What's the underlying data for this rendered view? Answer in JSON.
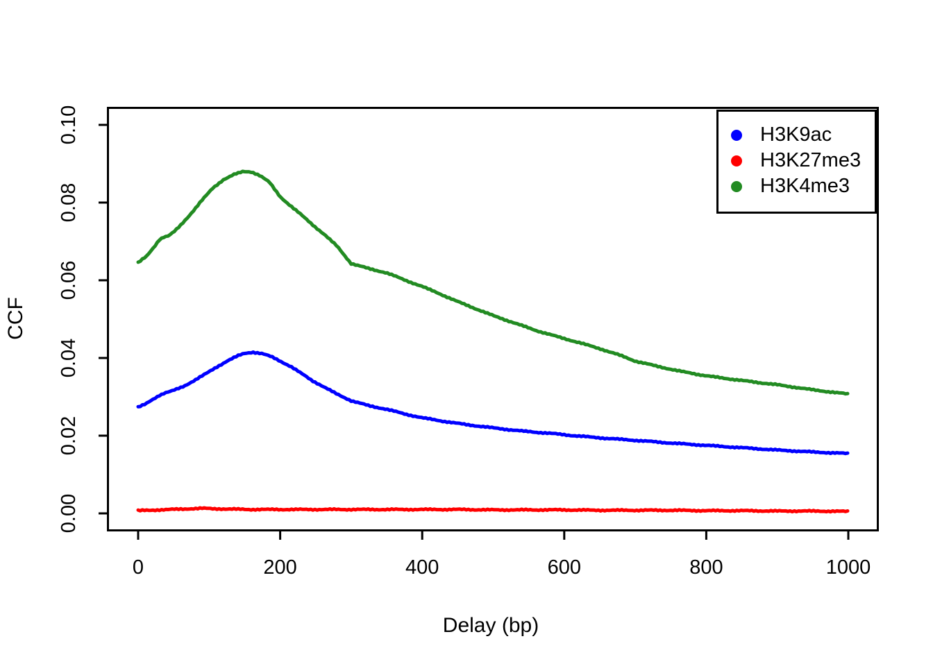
{
  "chart_data": {
    "type": "line",
    "title": "",
    "xlabel": "Delay (bp)",
    "ylabel": "CCF",
    "xlim": [
      0,
      1000
    ],
    "ylim": [
      0,
      0.1
    ],
    "grid": false,
    "legend_position": "topright",
    "x_ticks": [
      0,
      200,
      400,
      600,
      800,
      1000
    ],
    "x_tick_labels": [
      "0",
      "200",
      "400",
      "600",
      "800",
      "1000"
    ],
    "y_ticks": [
      0.0,
      0.02,
      0.04,
      0.06,
      0.08,
      0.1
    ],
    "y_tick_labels": [
      "0.00",
      "0.02",
      "0.04",
      "0.06",
      "0.08",
      "0.10"
    ],
    "series": [
      {
        "name": "H3K9ac",
        "color": "#0000FF",
        "points": [
          [
            0,
            0.0273
          ],
          [
            10,
            0.0281
          ],
          [
            20,
            0.0293
          ],
          [
            30,
            0.0304
          ],
          [
            38,
            0.031
          ],
          [
            46,
            0.0314
          ],
          [
            55,
            0.032
          ],
          [
            65,
            0.0328
          ],
          [
            80,
            0.0343
          ],
          [
            95,
            0.0359
          ],
          [
            110,
            0.0376
          ],
          [
            125,
            0.0392
          ],
          [
            140,
            0.0405
          ],
          [
            150,
            0.0412
          ],
          [
            162,
            0.0415
          ],
          [
            175,
            0.0411
          ],
          [
            188,
            0.0403
          ],
          [
            200,
            0.0392
          ],
          [
            215,
            0.0378
          ],
          [
            230,
            0.036
          ],
          [
            245,
            0.0342
          ],
          [
            260,
            0.0327
          ],
          [
            280,
            0.0307
          ],
          [
            300,
            0.029
          ],
          [
            325,
            0.0277
          ],
          [
            350,
            0.0268
          ],
          [
            375,
            0.0256
          ],
          [
            400,
            0.0246
          ],
          [
            430,
            0.0237
          ],
          [
            460,
            0.0229
          ],
          [
            500,
            0.022
          ],
          [
            540,
            0.0212
          ],
          [
            580,
            0.0206
          ],
          [
            620,
            0.0199
          ],
          [
            660,
            0.0193
          ],
          [
            700,
            0.0188
          ],
          [
            750,
            0.0181
          ],
          [
            800,
            0.0175
          ],
          [
            850,
            0.0169
          ],
          [
            900,
            0.0163
          ],
          [
            950,
            0.0158
          ],
          [
            1000,
            0.0154
          ]
        ]
      },
      {
        "name": "H3K27me3",
        "color": "#FF0000",
        "points": [
          [
            0,
            0.0007
          ],
          [
            15,
            0.0008
          ],
          [
            30,
            0.0009
          ],
          [
            45,
            0.001
          ],
          [
            60,
            0.0011
          ],
          [
            75,
            0.0012
          ],
          [
            90,
            0.0013
          ],
          [
            105,
            0.0012
          ],
          [
            130,
            0.0011
          ],
          [
            160,
            0.001
          ],
          [
            200,
            0.001
          ],
          [
            250,
            0.001
          ],
          [
            300,
            0.001
          ],
          [
            350,
            0.001
          ],
          [
            400,
            0.001
          ],
          [
            450,
            0.001
          ],
          [
            500,
            0.0009
          ],
          [
            550,
            0.0009
          ],
          [
            600,
            0.0009
          ],
          [
            650,
            0.0008
          ],
          [
            700,
            0.0008
          ],
          [
            750,
            0.0008
          ],
          [
            800,
            0.0007
          ],
          [
            850,
            0.0007
          ],
          [
            900,
            0.0006
          ],
          [
            950,
            0.0006
          ],
          [
            1000,
            0.0005
          ]
        ]
      },
      {
        "name": "H3K4me3",
        "color": "#228B22",
        "points": [
          [
            0,
            0.0645
          ],
          [
            12,
            0.0662
          ],
          [
            22,
            0.0685
          ],
          [
            30,
            0.0705
          ],
          [
            36,
            0.0711
          ],
          [
            43,
            0.0714
          ],
          [
            52,
            0.0727
          ],
          [
            62,
            0.0746
          ],
          [
            75,
            0.0773
          ],
          [
            90,
            0.0806
          ],
          [
            105,
            0.0837
          ],
          [
            120,
            0.0859
          ],
          [
            135,
            0.0872
          ],
          [
            148,
            0.088
          ],
          [
            160,
            0.0879
          ],
          [
            172,
            0.0869
          ],
          [
            185,
            0.0852
          ],
          [
            200,
            0.0815
          ],
          [
            215,
            0.0791
          ],
          [
            230,
            0.0768
          ],
          [
            245,
            0.0744
          ],
          [
            262,
            0.0718
          ],
          [
            280,
            0.0688
          ],
          [
            300,
            0.0643
          ],
          [
            325,
            0.063
          ],
          [
            350,
            0.0619
          ],
          [
            375,
            0.0601
          ],
          [
            400,
            0.0584
          ],
          [
            425,
            0.0565
          ],
          [
            450,
            0.0545
          ],
          [
            475,
            0.0527
          ],
          [
            500,
            0.0509
          ],
          [
            530,
            0.049
          ],
          [
            560,
            0.0471
          ],
          [
            590,
            0.0455
          ],
          [
            620,
            0.044
          ],
          [
            650,
            0.0424
          ],
          [
            680,
            0.0406
          ],
          [
            700,
            0.0392
          ],
          [
            730,
            0.0379
          ],
          [
            760,
            0.0367
          ],
          [
            800,
            0.0354
          ],
          [
            850,
            0.0342
          ],
          [
            900,
            0.0331
          ],
          [
            950,
            0.0318
          ],
          [
            1000,
            0.0307
          ]
        ]
      }
    ]
  },
  "colors": {
    "axis": "#000000",
    "background": "#FFFFFF"
  }
}
